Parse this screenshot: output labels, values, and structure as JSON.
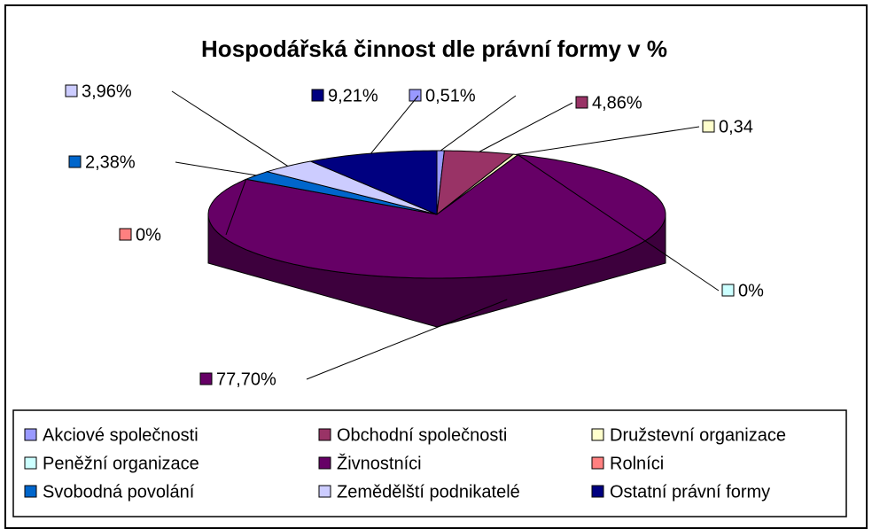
{
  "chart_data": {
    "type": "pie3d",
    "title": "Hospodářská činnost dle právní formy v %",
    "categories": [
      "Akciové společnosti",
      "Obchodní společnosti",
      "Družstevní organizace",
      "Peněžní organizace",
      "Živnostníci",
      "Rolníci",
      "Svobodná povolání",
      "Zemědělští podnikatelé",
      "Ostatní právní formy"
    ],
    "values": [
      0.51,
      4.86,
      0.34,
      0,
      77.7,
      0,
      2.38,
      3.96,
      9.21
    ],
    "value_labels": [
      "0,51%",
      "4,86%",
      "0,34",
      "0%",
      "77,70%",
      "0%",
      "2,38%",
      "3,96%",
      "9,21%"
    ],
    "colors": [
      "#9999ff",
      "#993366",
      "#ffffcc",
      "#ccffff",
      "#660066",
      "#ff8080",
      "#0066cc",
      "#ccccff",
      "#000080"
    ],
    "legend": "bottom"
  }
}
